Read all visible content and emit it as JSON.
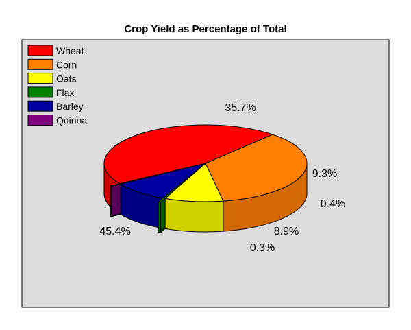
{
  "chart_data": {
    "type": "pie",
    "title": "Crop Yield as Percentage of Total",
    "legend_position": "top-left",
    "three_d": true,
    "categories": [
      "Wheat",
      "Corn",
      "Oats",
      "Flax",
      "Barley",
      "Quinoa"
    ],
    "values": [
      45.4,
      35.7,
      9.3,
      0.4,
      8.9,
      0.3
    ],
    "data_labels": [
      "45.4%",
      "35.7%",
      "9.3%",
      "0.4%",
      "8.9%",
      "0.3%"
    ],
    "colors": [
      "#ff0000",
      "#ff8000",
      "#ffff00",
      "#008000",
      "#0000a0",
      "#800080"
    ],
    "exploded": [
      "Flax",
      "Quinoa"
    ]
  }
}
